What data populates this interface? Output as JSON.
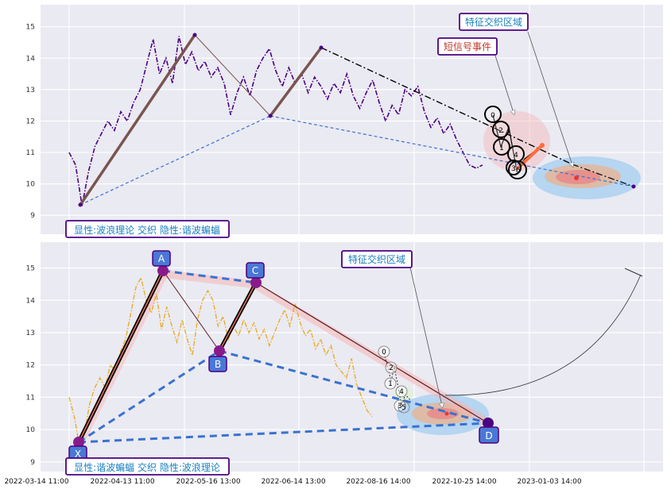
{
  "colors": {
    "panel_bg": "#eaeaf2",
    "grid": "#ffffff",
    "top_price": "#4b0082",
    "bottom_price": "#e8ad2a",
    "wave_line": "#7a5550",
    "blue_dash": "#3a72d0",
    "black_dash": "#000000",
    "label_border": "#4b0082",
    "label_text": "#1a7fc0",
    "short_signal_text": "#c0392b",
    "point_fill": "#4a78d6",
    "point_border": "#4b0082",
    "zone_outer": "#a8d0f0",
    "zone_mid": "#e7b493",
    "zone_inner": "#e88a8a",
    "pink_zone": "#f5b5b5"
  },
  "chart_data": [
    {
      "type": "line",
      "panel": "top",
      "ylim": [
        8.4,
        15.7
      ],
      "yticks": [
        "9",
        "10",
        "11",
        "12",
        "13",
        "14",
        "15"
      ],
      "ytick_values": [
        9,
        10,
        11,
        12,
        13,
        14,
        15
      ],
      "grid": true,
      "series": [
        {
          "style": "dash-dot",
          "x_days": [
            0,
            3,
            6,
            9,
            12,
            15,
            18,
            21,
            24,
            27,
            30,
            33,
            36,
            39,
            42,
            45,
            48,
            51,
            54,
            57,
            60,
            63,
            66,
            69,
            72,
            75,
            78,
            81,
            84,
            87,
            90,
            93,
            96,
            99,
            102,
            105,
            108,
            111,
            114,
            117,
            120,
            123,
            126,
            129,
            132,
            135,
            138,
            141,
            144,
            147,
            150,
            153,
            156,
            159,
            162,
            165,
            168,
            171,
            174,
            177,
            180,
            183,
            186,
            189,
            192,
            195,
            198,
            201,
            204,
            207,
            210,
            213,
            216,
            219,
            222,
            225,
            228,
            231,
            234,
            237,
            240,
            243,
            246,
            249,
            252,
            255
          ],
          "values": [
            11.0,
            10.6,
            9.3,
            10.4,
            11.2,
            11.6,
            12.0,
            11.7,
            12.3,
            12.0,
            12.6,
            13.0,
            13.8,
            14.6,
            13.5,
            14.0,
            13.2,
            14.7,
            13.8,
            14.2,
            13.6,
            13.9,
            13.4,
            13.7,
            13.2,
            12.2,
            12.9,
            13.4,
            12.8,
            13.6,
            14.0,
            14.3,
            13.6,
            13.1,
            13.7,
            13.2,
            13.5,
            12.9,
            13.4,
            13.1,
            12.7,
            13.2,
            12.9,
            13.5,
            12.8,
            12.4,
            12.9,
            13.3,
            12.6,
            12.0,
            12.5,
            12.2,
            13.0,
            12.8,
            13.1,
            12.3,
            11.8,
            12.1,
            11.6,
            11.9,
            11.4,
            11.0,
            10.6,
            10.5,
            10.6,
            null,
            null,
            null,
            null,
            null,
            null,
            null,
            null,
            null,
            null,
            null,
            null,
            null,
            null,
            null,
            null,
            null,
            null,
            null,
            null,
            9.9
          ]
        }
      ],
      "wave_points": [
        {
          "label": "",
          "x_day": 3,
          "y": 9.3
        },
        {
          "label": "",
          "x_day": 40,
          "y": 14.7
        },
        {
          "label": "",
          "x_day": 64,
          "y": 12.15
        },
        {
          "label": "",
          "x_day": 82,
          "y": 14.35
        },
        {
          "label": "",
          "x_day": 154,
          "y": 10.5
        },
        {
          "label": "",
          "x_day": 165,
          "y": 10.5
        },
        {
          "label": "",
          "x_day": 178,
          "y": 9.9
        }
      ],
      "annotations": {
        "bottom_label": "显性:波浪理论 交织 隐性:谐波蝙蝠",
        "zone_label": "特征交织区域",
        "signal_label": "短信号事件",
        "wave_numbers": [
          "0",
          "2",
          "1",
          "4",
          "3",
          "5"
        ]
      }
    },
    {
      "type": "line",
      "panel": "bottom",
      "ylim": [
        8.7,
        15.8
      ],
      "yticks": [
        "9",
        "10",
        "11",
        "12",
        "13",
        "14",
        "15"
      ],
      "ytick_values": [
        9,
        10,
        11,
        12,
        13,
        14,
        15
      ],
      "grid": true,
      "series": [
        {
          "style": "dash-dot",
          "values": [
            11.0,
            10.4,
            9.5,
            9.9,
            10.8,
            11.3,
            11.6,
            11.3,
            12.0,
            11.8,
            12.4,
            12.8,
            13.6,
            14.4,
            14.7,
            14.0,
            13.6,
            14.2,
            13.1,
            13.8,
            13.2,
            12.7,
            13.4,
            12.8,
            12.3,
            13.4,
            14.0,
            14.3,
            14.0,
            13.2,
            13.5,
            12.8,
            13.2,
            12.9,
            13.4,
            13.0,
            13.3,
            12.8,
            13.1,
            12.6,
            13.0,
            13.4,
            13.7,
            13.2,
            13.9,
            13.3,
            12.9,
            13.1,
            12.5,
            12.8,
            12.3,
            12.6,
            12.0,
            11.8,
            11.6,
            12.2,
            11.4,
            11.0,
            10.6,
            10.4
          ]
        }
      ],
      "xabc_points": [
        {
          "label": "X",
          "x_day": 3,
          "y": 9.35
        },
        {
          "label": "A",
          "x_day": 39,
          "y": 14.75
        },
        {
          "label": "B",
          "x_day": 63,
          "y": 12.15
        },
        {
          "label": "C",
          "x_day": 81,
          "y": 14.35
        },
        {
          "label": "D",
          "x_day": 177,
          "y": 9.95
        }
      ],
      "annotations": {
        "bottom_label": "显性:谐波蝙蝠 交织 隐性:波浪理论",
        "zone_label": "特征交织区域",
        "wave_numbers": [
          "0",
          "2",
          "1",
          "4",
          "3",
          "5"
        ]
      }
    }
  ],
  "x_axis": {
    "tick_labels": [
      "2022-03-14 11:00",
      "2022-04-13 11:00",
      "2022-05-16 13:00",
      "2022-06-14 13:00",
      "2022-08-16 14:00",
      "2022-10-25 14:00",
      "2023-01-03 14:00"
    ]
  }
}
